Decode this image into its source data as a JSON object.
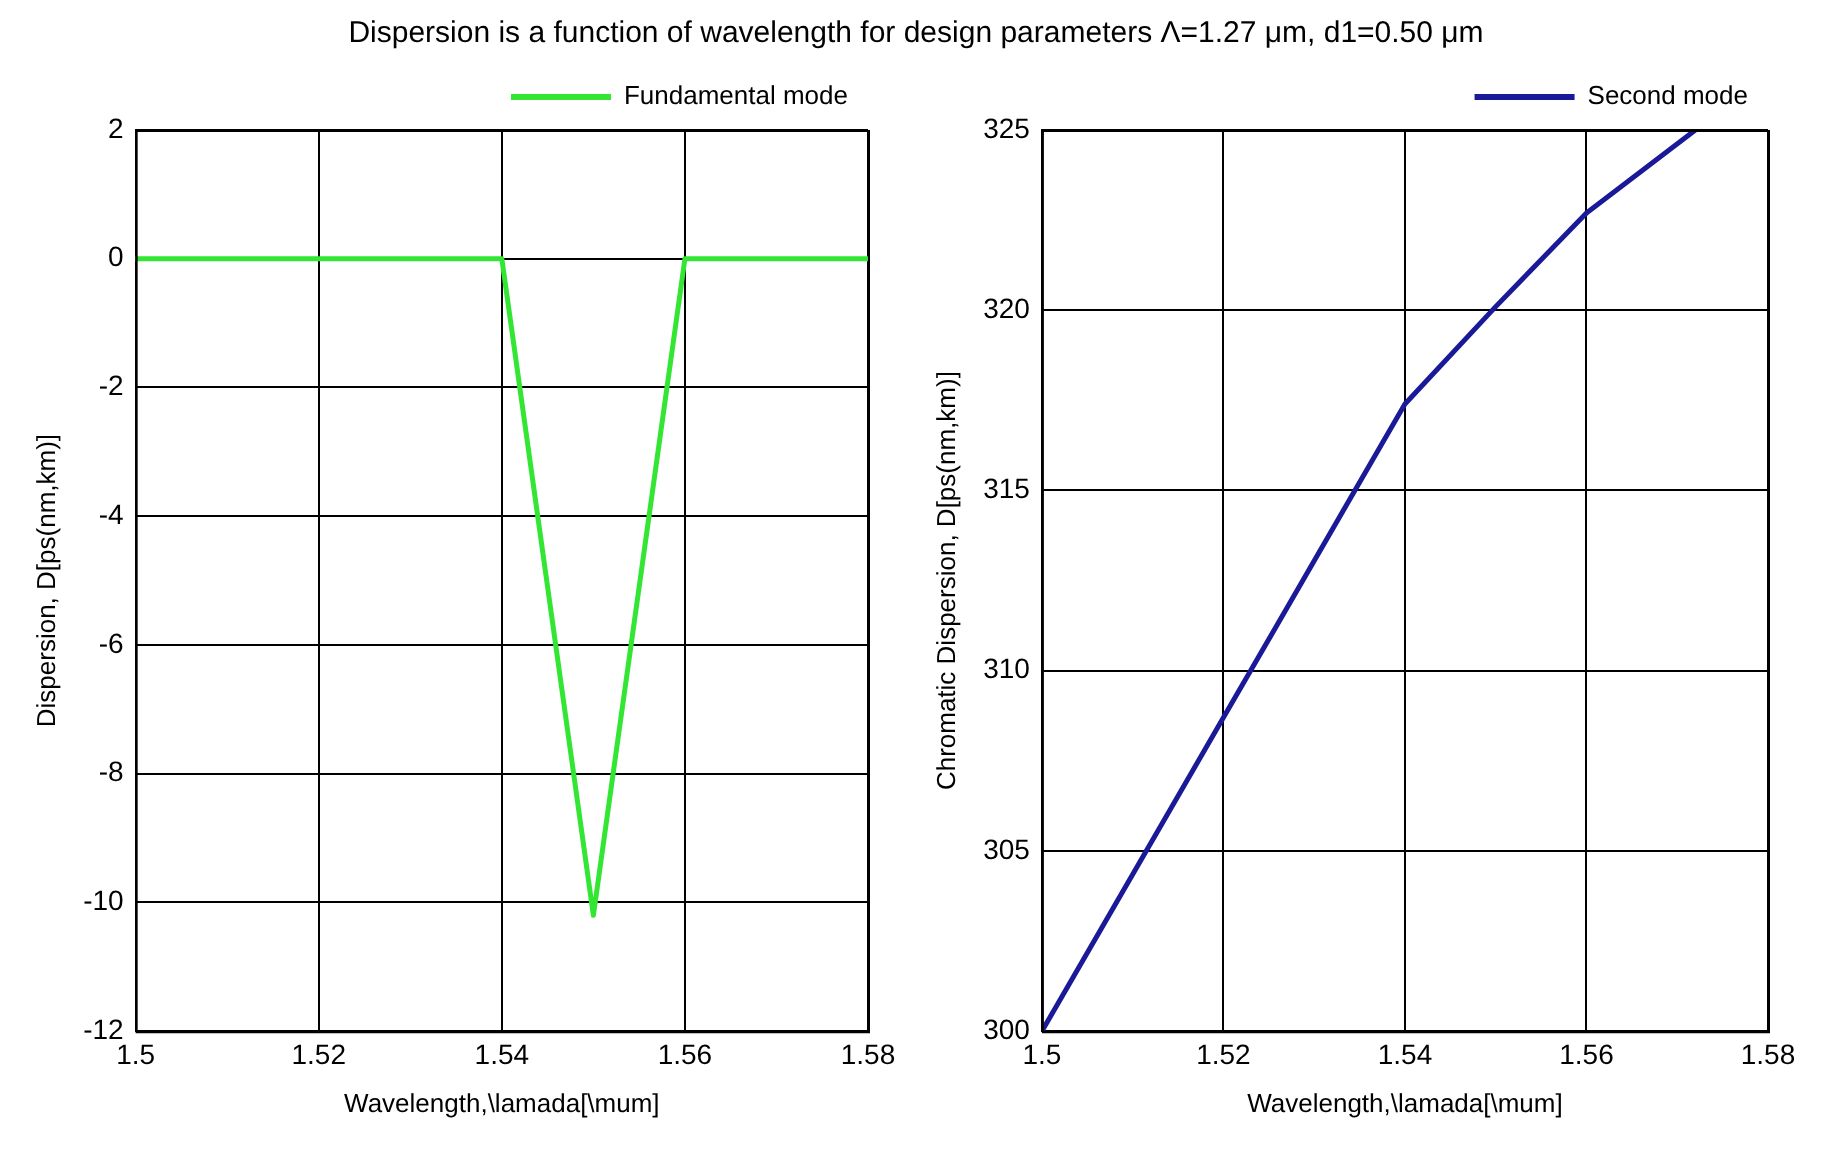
{
  "chart_data": [
    {
      "type": "line",
      "title": "Dispersion is a function of wavelength for design parameters Λ=1.27 μm, d1=0.50 μm",
      "xlabel": "Wavelength,\\lamada[\\mum]",
      "ylabel": "Dispersion, D[ps(nm,km)]",
      "xlim": [
        1.5,
        1.58
      ],
      "xticks": [
        1.5,
        1.52,
        1.54,
        1.56,
        1.58
      ],
      "ylim": [
        -12,
        2
      ],
      "yticks": [
        -12,
        -10,
        -8,
        -6,
        -4,
        -2,
        0,
        2
      ],
      "grid": true,
      "legend": "top right",
      "line_style": "solid",
      "marker": "none",
      "series": [
        {
          "name": "Fundamental mode",
          "color": "#33e633",
          "x": [
            1.5,
            1.54,
            1.55,
            1.56,
            1.58
          ],
          "values": [
            0,
            0,
            -10.2,
            0,
            0
          ]
        }
      ]
    },
    {
      "type": "line",
      "xlabel": "Wavelength,\\lamada[\\mum]",
      "ylabel": "Chromatic Dispersion, D[ps(nm,km)]",
      "xlim": [
        1.5,
        1.58
      ],
      "xticks": [
        1.5,
        1.52,
        1.54,
        1.56,
        1.58
      ],
      "ylim": [
        300,
        325
      ],
      "yticks": [
        300,
        305,
        310,
        315,
        320,
        325
      ],
      "grid": true,
      "legend": "top right",
      "line_style": "solid",
      "marker": "none",
      "series": [
        {
          "name": "Second mode",
          "color": "#1a1a99",
          "x": [
            1.5,
            1.52,
            1.54,
            1.55,
            1.56,
            1.572
          ],
          "values": [
            300,
            308.7,
            317.4,
            320.1,
            322.7,
            325
          ]
        }
      ]
    }
  ]
}
